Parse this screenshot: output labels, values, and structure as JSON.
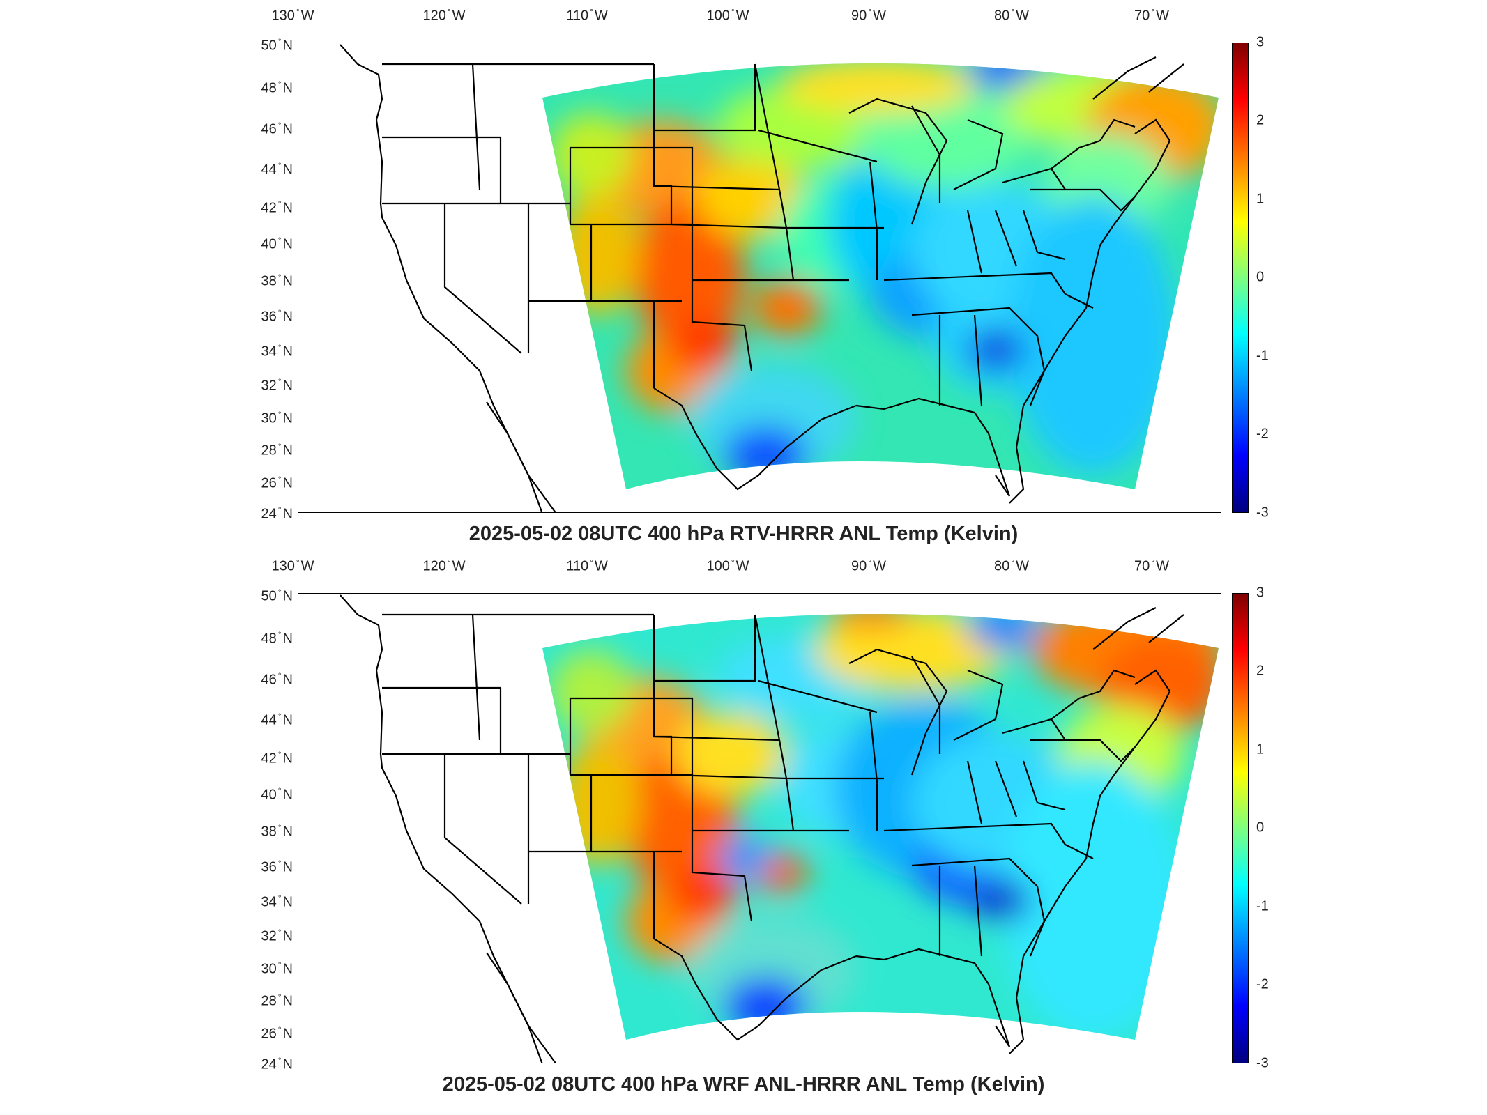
{
  "maps": [
    {
      "title": "2025-05-02 08UTC 400 hPa RTV-HRRR ANL Temp (Kelvin)",
      "lon_labels": [
        "130",
        "120",
        "110",
        "100",
        "90",
        "80",
        "70"
      ],
      "lon_hemi": "W",
      "lat_labels": [
        "50",
        "48",
        "46",
        "44",
        "42",
        "40",
        "38",
        "36",
        "34",
        "32",
        "30",
        "28",
        "26",
        "24"
      ],
      "lat_hemi": "N",
      "colorbar_ticks": [
        "3",
        "2",
        "1",
        "0",
        "-1",
        "-2",
        "-3"
      ]
    },
    {
      "title": "2025-05-02 08UTC 400 hPa WRF ANL-HRRR ANL Temp (Kelvin)",
      "lon_labels": [
        "130",
        "120",
        "110",
        "100",
        "90",
        "80",
        "70"
      ],
      "lon_hemi": "W",
      "lat_labels": [
        "50",
        "48",
        "46",
        "44",
        "42",
        "40",
        "38",
        "36",
        "34",
        "32",
        "30",
        "28",
        "26",
        "24"
      ],
      "lat_hemi": "N",
      "colorbar_ticks": [
        "3",
        "2",
        "1",
        "0",
        "-1",
        "-2",
        "-3"
      ]
    }
  ],
  "colormap": "jet",
  "colorbar_range": [
    -3,
    3
  ]
}
